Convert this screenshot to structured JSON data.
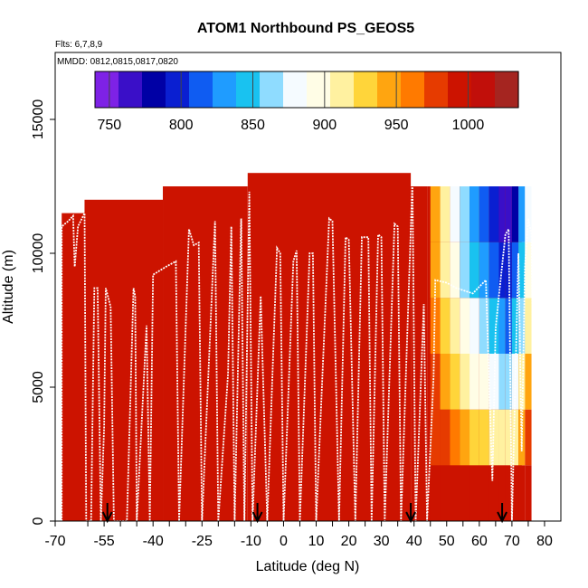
{
  "chart_data": {
    "type": "heatmap",
    "title": "ATOM1 Northbound PS_GEOS5",
    "subtitle_flights": "Flts: 6,7,8,9",
    "subtitle_dates": "MMDD: 0812,0815,0817,0820",
    "xlabel": "Latitude (deg N)",
    "ylabel": "Altitude (m)",
    "xlim": [
      -70,
      85
    ],
    "ylim": [
      0,
      17500
    ],
    "x_ticks": [
      {
        "value": -70,
        "label": "-70"
      },
      {
        "value": -55,
        "label": "-55"
      },
      {
        "value": -40,
        "label": "-40"
      },
      {
        "value": -25,
        "label": "-25"
      },
      {
        "value": -10,
        "label": "-10"
      },
      {
        "value": 0,
        "label": "0"
      },
      {
        "value": 10,
        "label": "10"
      },
      {
        "value": 20,
        "label": "20"
      },
      {
        "value": 30,
        "label": "30"
      },
      {
        "value": 40,
        "label": "40"
      },
      {
        "value": 50,
        "label": "50"
      },
      {
        "value": 60,
        "label": "60"
      },
      {
        "value": 70,
        "label": "70"
      },
      {
        "value": 80,
        "label": "80"
      }
    ],
    "x_ticks_minor": [
      -60,
      -50,
      -45,
      -35,
      -30,
      -20,
      -15,
      -5,
      5,
      15,
      25,
      35,
      45,
      55,
      65,
      75
    ],
    "y_ticks": [
      {
        "value": 0,
        "label": "0"
      },
      {
        "value": 5000,
        "label": "5000"
      },
      {
        "value": 10000,
        "label": "10000"
      },
      {
        "value": 15000,
        "label": "15000"
      }
    ],
    "colorbar": {
      "min": 740,
      "max": 1035,
      "ticks": [
        {
          "value": 750,
          "label": "750"
        },
        {
          "value": 800,
          "label": "800"
        },
        {
          "value": 850,
          "label": "850"
        },
        {
          "value": 900,
          "label": "900"
        },
        {
          "value": 950,
          "label": "950"
        },
        {
          "value": 1000,
          "label": "1000"
        }
      ],
      "colors": [
        "#7e22e6",
        "#3a0fc8",
        "#0000a5",
        "#0a1fd1",
        "#0f5cf2",
        "#1f9cff",
        "#19c2f0",
        "#8fdcff",
        "#f5fbff",
        "#fffde6",
        "#fff1a0",
        "#ffd53a",
        "#ffa510",
        "#ff7a00",
        "#e63b00",
        "#cc1300",
        "#c10f0a",
        "#a52520"
      ]
    },
    "field_color": "#cc1300",
    "curtain_blocks": [
      {
        "x0": -68,
        "x1": -61,
        "top": 11500
      },
      {
        "x0": -61,
        "x1": -37,
        "top": 12000
      },
      {
        "x0": -37,
        "x1": -11,
        "top": 12500
      },
      {
        "x0": -11,
        "x1": 39,
        "top": 13000
      },
      {
        "x0": 39,
        "x1": 44,
        "top": 12500
      },
      {
        "x0": 44,
        "x1": 73,
        "top": 12500
      }
    ],
    "pressure_columns": [
      {
        "x": 45,
        "values": [
          1000,
          985,
          970,
          960,
          950,
          940
        ]
      },
      {
        "x": 48,
        "values": [
          1000,
          970,
          950,
          935,
          920,
          905
        ]
      },
      {
        "x": 51,
        "values": [
          1000,
          955,
          930,
          910,
          895,
          880
        ]
      },
      {
        "x": 54,
        "values": [
          1000,
          945,
          915,
          890,
          870,
          855
        ]
      },
      {
        "x": 57,
        "values": [
          1000,
          935,
          900,
          875,
          850,
          830
        ]
      },
      {
        "x": 60,
        "values": [
          1000,
          925,
          890,
          860,
          830,
          810
        ]
      },
      {
        "x": 63,
        "values": [
          1000,
          920,
          880,
          850,
          815,
          790
        ]
      },
      {
        "x": 66,
        "values": [
          1000,
          915,
          870,
          835,
          800,
          770
        ]
      },
      {
        "x": 68,
        "values": [
          1000,
          905,
          860,
          820,
          790,
          760
        ]
      },
      {
        "x": 70,
        "values": [
          1000,
          920,
          880,
          840,
          810,
          780
        ]
      },
      {
        "x": 72,
        "values": [
          1000,
          950,
          910,
          870,
          850,
          830
        ]
      },
      {
        "x": 74,
        "values": [
          1000,
          975,
          945,
          915,
          890,
          880
        ]
      }
    ],
    "flight_track": [
      [
        -68,
        0
      ],
      [
        -68,
        11000
      ],
      [
        -66,
        11200
      ],
      [
        -64.5,
        11400
      ],
      [
        -64,
        9500
      ],
      [
        -63,
        11000
      ],
      [
        -61,
        11500
      ],
      [
        -60.5,
        0
      ],
      [
        -59,
        0
      ],
      [
        -58,
        8700
      ],
      [
        -57,
        8700
      ],
      [
        -56,
        0
      ],
      [
        -55,
        3500
      ],
      [
        -54.5,
        8700
      ],
      [
        -53,
        8000
      ],
      [
        -52,
        0
      ],
      [
        -48,
        0
      ],
      [
        -46,
        8700
      ],
      [
        -45.5,
        8400
      ],
      [
        -45,
        0
      ],
      [
        -42,
        7300
      ],
      [
        -41,
        0
      ],
      [
        -40,
        9200
      ],
      [
        -36,
        9500
      ],
      [
        -33,
        9700
      ],
      [
        -32,
        0
      ],
      [
        -29,
        10900
      ],
      [
        -27.5,
        10300
      ],
      [
        -26,
        10400
      ],
      [
        -25,
        0
      ],
      [
        -21,
        11200
      ],
      [
        -20,
        0
      ],
      [
        -17,
        5500
      ],
      [
        -16,
        11000
      ],
      [
        -15,
        0
      ],
      [
        -13,
        11300
      ],
      [
        -12,
        0
      ],
      [
        -10.5,
        12300
      ],
      [
        -9.5,
        0
      ],
      [
        -7,
        8400
      ],
      [
        -5,
        0
      ],
      [
        -2,
        10200
      ],
      [
        -1,
        10000
      ],
      [
        0,
        0
      ],
      [
        3,
        9700
      ],
      [
        4,
        10100
      ],
      [
        5,
        0
      ],
      [
        8,
        10000
      ],
      [
        9,
        10000
      ],
      [
        10,
        0
      ],
      [
        14,
        11300
      ],
      [
        15,
        11200
      ],
      [
        17,
        0
      ],
      [
        19,
        10600
      ],
      [
        20,
        10500
      ],
      [
        22,
        0
      ],
      [
        24,
        10600
      ],
      [
        26,
        10600
      ],
      [
        27,
        0
      ],
      [
        29,
        10700
      ],
      [
        30,
        10600
      ],
      [
        31,
        0
      ],
      [
        34,
        11100
      ],
      [
        35,
        11000
      ],
      [
        36,
        0
      ],
      [
        39.5,
        12700
      ],
      [
        40.5,
        0
      ],
      [
        43,
        8100
      ],
      [
        44,
        0
      ],
      [
        46,
        5400
      ],
      [
        46.5,
        9000
      ],
      [
        50,
        8900
      ],
      [
        53,
        8700
      ],
      [
        58,
        8500
      ],
      [
        62,
        9000
      ],
      [
        64,
        1500
      ],
      [
        65,
        7200
      ],
      [
        66,
        8400
      ],
      [
        68,
        10700
      ],
      [
        69,
        10900
      ],
      [
        70,
        0
      ],
      [
        72,
        10000
      ],
      [
        73,
        2600
      ],
      [
        74,
        9500
      ],
      [
        75,
        11300
      ],
      [
        76,
        10700
      ],
      [
        77,
        0
      ]
    ],
    "markers_x": [
      -54,
      -8,
      39,
      67
    ]
  }
}
